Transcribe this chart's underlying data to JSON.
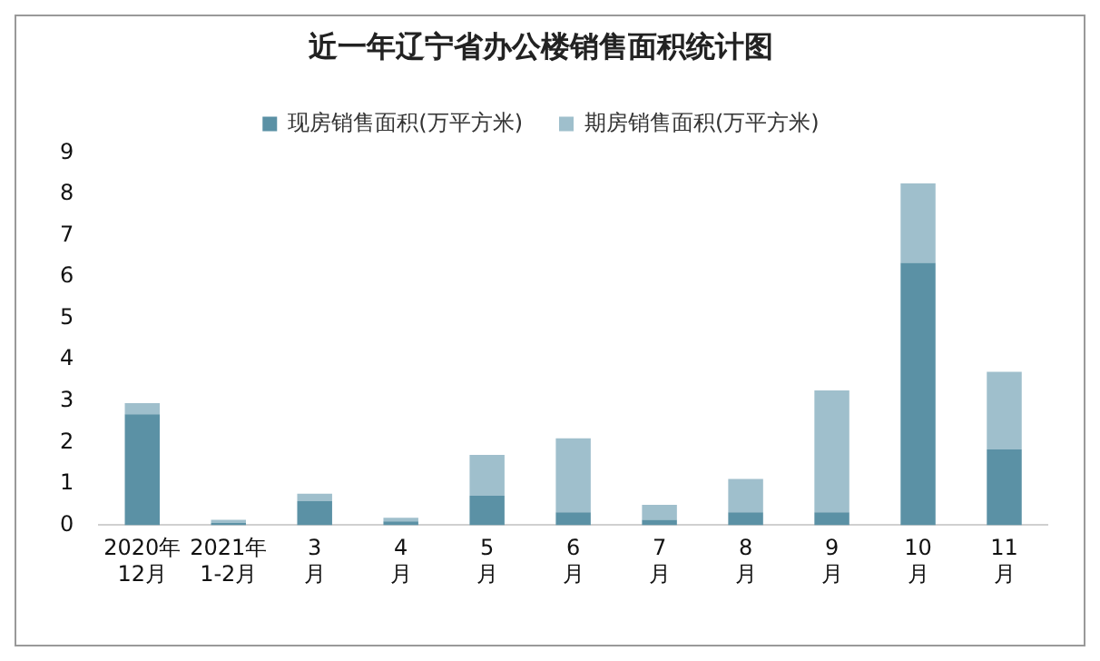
{
  "chart_data": {
    "type": "bar",
    "title": "近一年辽宁省办公楼销售面积统计图",
    "categories": [
      "2020年\n12月",
      "2021年\n1-2月",
      "3\n月",
      "4\n月",
      "5\n月",
      "6\n月",
      "7\n月",
      "8\n月",
      "9\n月",
      "10\n月",
      "11\n月"
    ],
    "series": [
      {
        "name": "现房销售面积(万平方米)",
        "color": "#5b91a5",
        "values": [
          2.68,
          0.05,
          0.58,
          0.09,
          0.71,
          0.31,
          0.13,
          0.31,
          0.31,
          6.34,
          1.83
        ]
      },
      {
        "name": "期房销售面积(万平方米)",
        "color": "#9fbfcc",
        "values": [
          0.27,
          0.08,
          0.18,
          0.09,
          0.99,
          1.79,
          0.36,
          0.81,
          2.95,
          1.92,
          1.88
        ]
      }
    ],
    "stacked": true,
    "ylim": [
      0,
      9
    ],
    "yticks": [
      0,
      1,
      2,
      3,
      4,
      5,
      6,
      7,
      8,
      9
    ],
    "grid": false,
    "legend": "top"
  }
}
